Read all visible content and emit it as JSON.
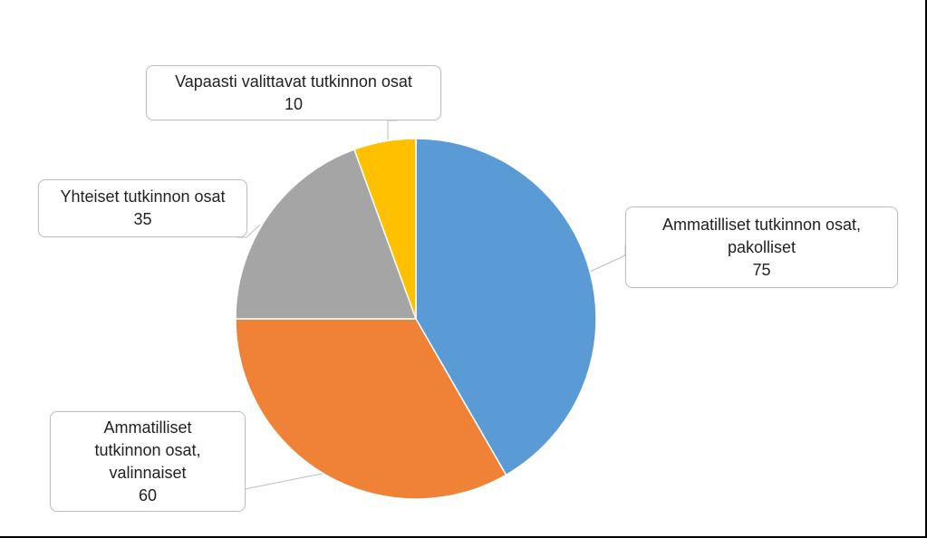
{
  "chart_data": {
    "type": "pie",
    "categories": [
      "Ammatilliset tutkinnon osat, pakolliset",
      "Ammatilliset tutkinnon osat, valinnaiset",
      "Yhteiset tutkinnon osat",
      "Vapaasti valittavat tutkinnon osat"
    ],
    "values": [
      75,
      60,
      35,
      10
    ],
    "colors": [
      "#5b9bd5",
      "#ef8236",
      "#a5a5a5",
      "#ffc000"
    ]
  }
}
